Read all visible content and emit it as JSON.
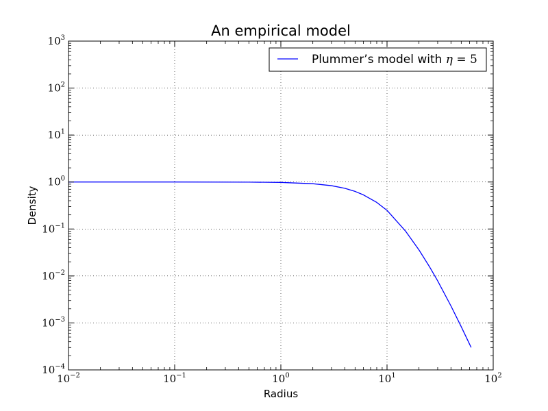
{
  "chart_data": {
    "type": "line",
    "title": "An empirical model",
    "xlabel": "Radius",
    "ylabel": "Density",
    "xscale": "log",
    "yscale": "log",
    "xlim": [
      0.01,
      100
    ],
    "ylim": [
      0.0001,
      1000
    ],
    "grid": true,
    "legend_position": "top-right",
    "x_ticks": [
      {
        "base": "10",
        "exp": "−2"
      },
      {
        "base": "10",
        "exp": "−1"
      },
      {
        "base": "10",
        "exp": "0"
      },
      {
        "base": "10",
        "exp": "1"
      },
      {
        "base": "10",
        "exp": "2"
      }
    ],
    "y_ticks": [
      {
        "base": "10",
        "exp": "−4"
      },
      {
        "base": "10",
        "exp": "−3"
      },
      {
        "base": "10",
        "exp": "−2"
      },
      {
        "base": "10",
        "exp": "−1"
      },
      {
        "base": "10",
        "exp": "0"
      },
      {
        "base": "10",
        "exp": "1"
      },
      {
        "base": "10",
        "exp": "2"
      },
      {
        "base": "10",
        "exp": "3"
      }
    ],
    "series": [
      {
        "name_prefix": "Plummer’s model with ",
        "name_symbol": "η",
        "name_suffix": " = 5",
        "color": "#0000ff",
        "x": [
          0.01,
          0.1,
          0.5,
          1,
          2,
          3,
          4,
          5,
          6,
          8,
          10,
          15,
          20,
          25,
          30,
          40,
          50,
          60,
          62
        ],
        "y": [
          1.0,
          1.0,
          0.995,
          0.98,
          0.92,
          0.836,
          0.735,
          0.631,
          0.532,
          0.368,
          0.249,
          0.0892,
          0.0358,
          0.016,
          0.00786,
          0.0023,
          0.000831,
          0.00035,
          0.0003
        ]
      }
    ]
  }
}
